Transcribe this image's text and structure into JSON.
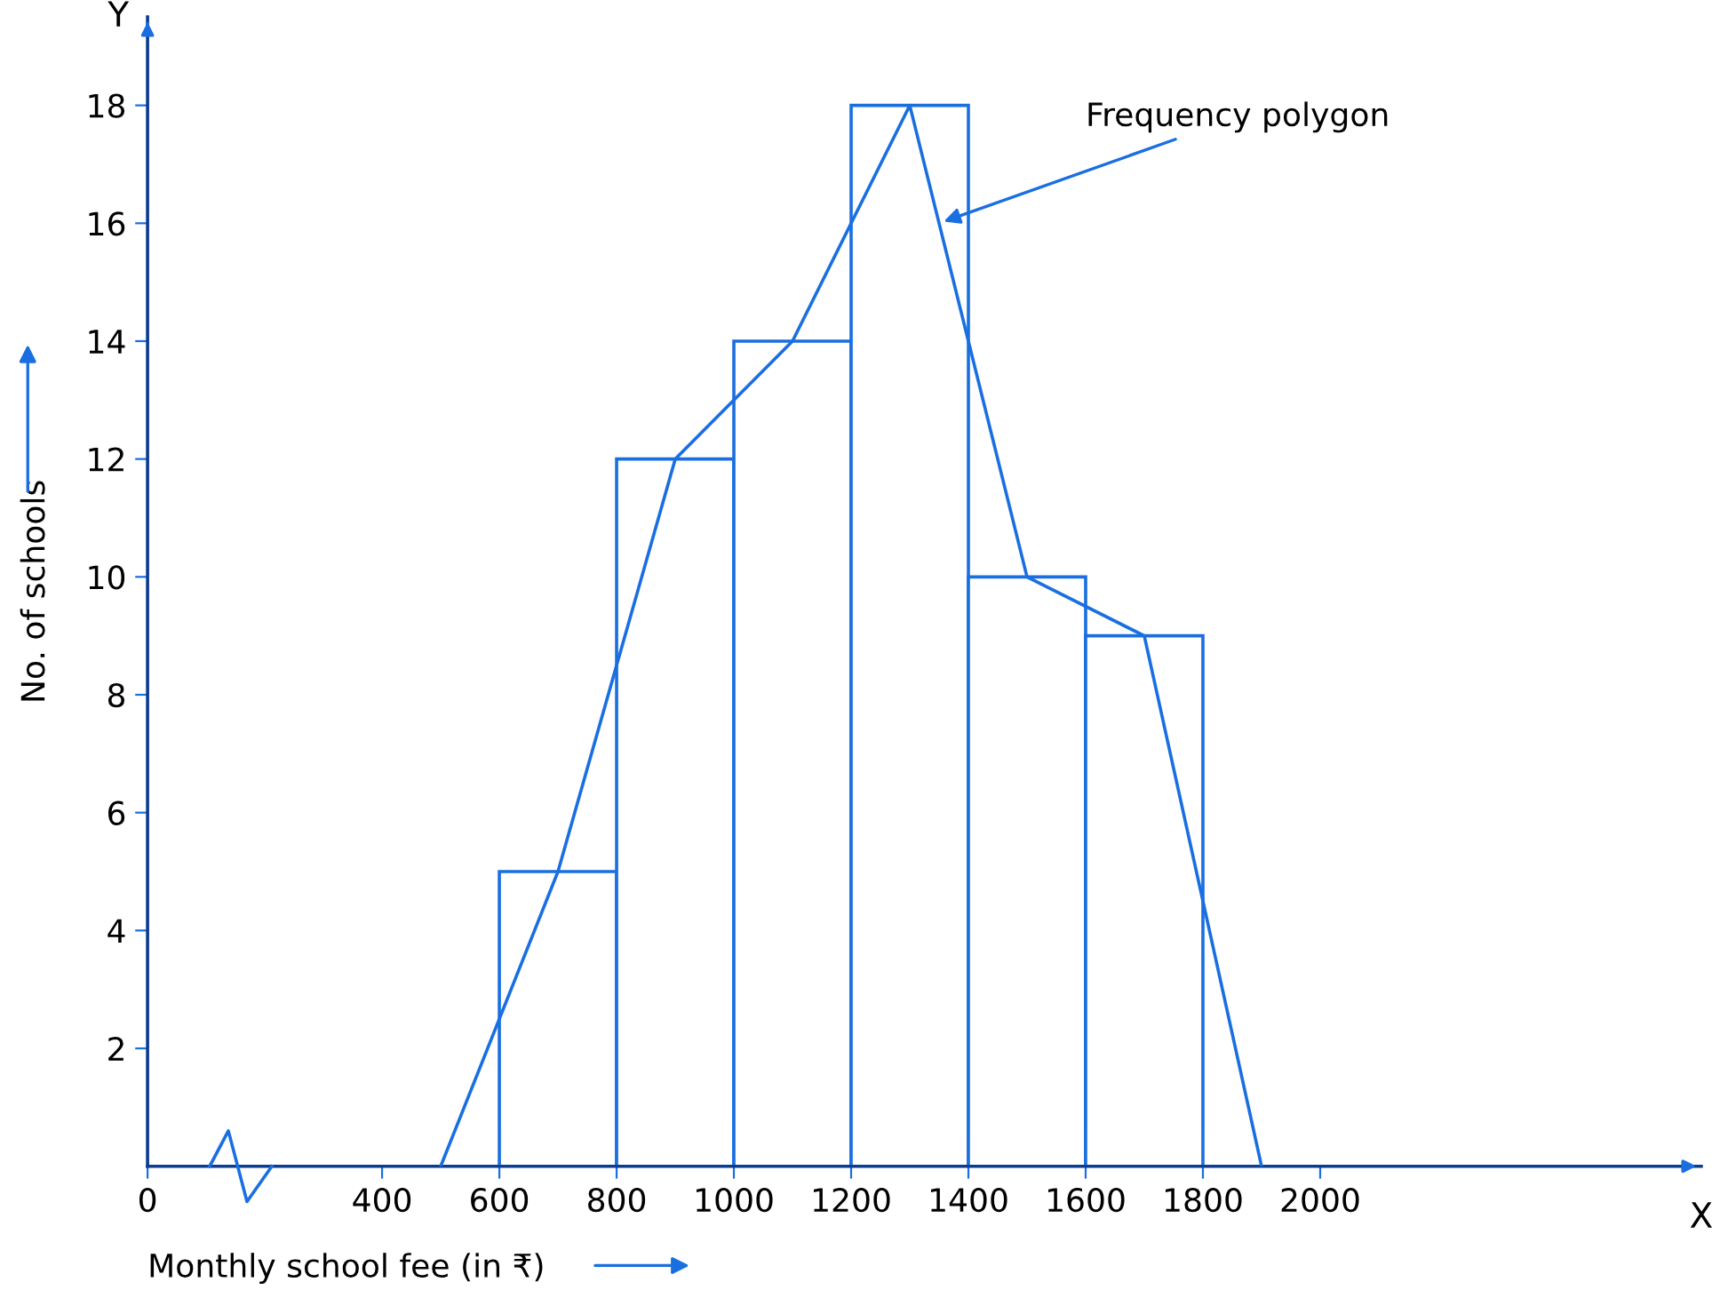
{
  "chart_data": {
    "type": "histogram",
    "xlabel": "Monthly school fee (in ₹)",
    "ylabel": "No. of schools",
    "bins": [
      600,
      800,
      1000,
      1200,
      1400,
      1600,
      1800
    ],
    "values": [
      5,
      12,
      14,
      18,
      10,
      9
    ],
    "color": "#1a6fe0",
    "series": [
      {
        "type": "line",
        "x": [
          500,
          700,
          900,
          1100,
          1300,
          1500,
          1700,
          1900
        ],
        "values": [
          0,
          5,
          12,
          14,
          18,
          10,
          9,
          0
        ],
        "color": "#1a6fe0"
      }
    ],
    "xlim": [
      0,
      2650
    ],
    "ylim": [
      0,
      19.5
    ],
    "xticks": [
      {
        "value": 0,
        "label": "0"
      },
      400,
      600,
      800,
      1000,
      1200,
      1400,
      1600,
      1800,
      2000
    ],
    "yticks": [
      2,
      4,
      6,
      8,
      10,
      12,
      14,
      16,
      18
    ],
    "annotations": [
      {
        "text": "Frequency polygon",
        "x": 1350,
        "y": 16
      },
      "X",
      "Y"
    ],
    "grid": false,
    "legend": false
  }
}
